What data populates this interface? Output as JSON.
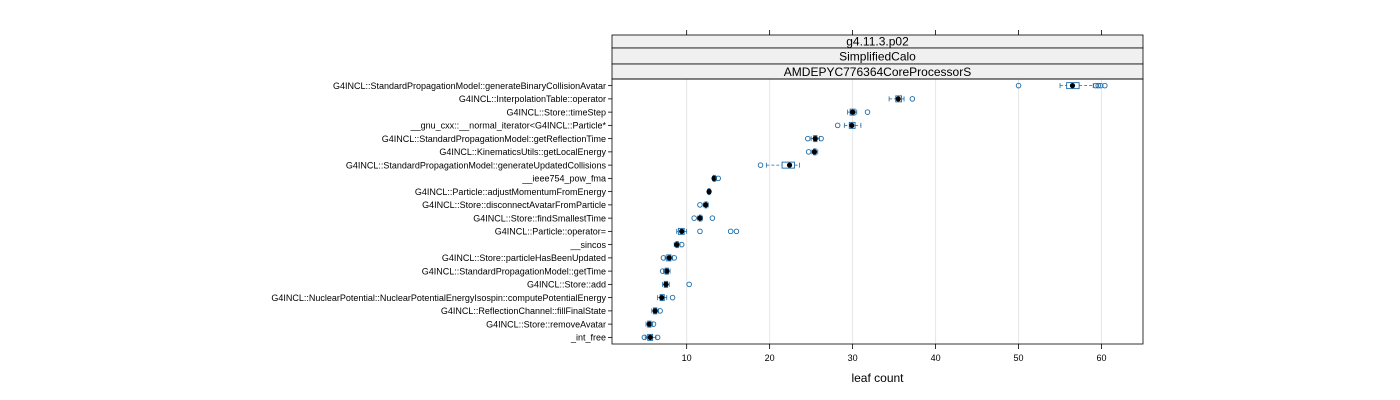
{
  "chart_data": {
    "type": "boxplot",
    "strips": [
      "g4.11.3.p02",
      "SimplifiedCalo",
      "AMDEPYC776364CoreProcessorS"
    ],
    "xlabel": "leaf count",
    "xlim": [
      1,
      65
    ],
    "xticks": [
      10,
      20,
      30,
      40,
      50,
      60
    ],
    "grid": "vertical",
    "colors": {
      "box": "#1a6aa8",
      "median": "#000000",
      "grid": "#e6e6e6",
      "strip": "#f0f0f0"
    },
    "categories": [
      "G4INCL::StandardPropagationModel::generateBinaryCollisionAvatar",
      "G4INCL::InterpolationTable::operator",
      "G4INCL::Store::timeStep",
      "__gnu_cxx::__normal_iterator<G4INCL::Particle*",
      "G4INCL::StandardPropagationModel::getReflectionTime",
      "G4INCL::KinematicsUtils::getLocalEnergy",
      "G4INCL::StandardPropagationModel::generateUpdatedCollisions",
      "__ieee754_pow_fma",
      "G4INCL::Particle::adjustMomentumFromEnergy",
      "G4INCL::Store::disconnectAvatarFromParticle",
      "G4INCL::Store::findSmallestTime",
      "G4INCL::Particle::operator=",
      "__sincos",
      "G4INCL::Store::particleHasBeenUpdated",
      "G4INCL::StandardPropagationModel::getTime",
      "G4INCL::Store::add",
      "G4INCL::NuclearPotential::NuclearPotentialEnergyIsospin::computePotentialEnergy",
      "G4INCL::ReflectionChannel::fillFinalState",
      "G4INCL::Store::removeAvatar",
      "_int_free"
    ],
    "series": [
      {
        "whisker_low": 55.0,
        "q1": 55.8,
        "median": 56.5,
        "q3": 57.3,
        "whisker_high": 59.0,
        "outliers": [
          50.0,
          59.3,
          59.6,
          59.9,
          60.4
        ]
      },
      {
        "whisker_low": 34.4,
        "q1": 35.2,
        "median": 35.5,
        "q3": 35.9,
        "whisker_high": 36.2,
        "outliers": [
          37.2
        ]
      },
      {
        "whisker_low": 29.4,
        "q1": 29.7,
        "median": 30.0,
        "q3": 30.3,
        "whisker_high": 30.5,
        "outliers": [
          31.8
        ]
      },
      {
        "whisker_low": 29.0,
        "q1": 29.6,
        "median": 29.9,
        "q3": 30.3,
        "whisker_high": 31.0,
        "outliers": [
          28.2
        ]
      },
      {
        "whisker_low": 25.0,
        "q1": 25.3,
        "median": 25.5,
        "q3": 25.7,
        "whisker_high": 26.0,
        "outliers": [
          24.6,
          26.2
        ]
      },
      {
        "whisker_low": 25.1,
        "q1": 25.3,
        "median": 25.4,
        "q3": 25.6,
        "whisker_high": 25.8,
        "outliers": [
          24.7
        ]
      },
      {
        "whisker_low": 19.6,
        "q1": 21.5,
        "median": 22.4,
        "q3": 23.0,
        "whisker_high": 23.6,
        "outliers": [
          18.9
        ]
      },
      {
        "whisker_low": 13.1,
        "q1": 13.2,
        "median": 13.3,
        "q3": 13.45,
        "whisker_high": 13.6,
        "outliers": [
          13.8
        ]
      },
      {
        "whisker_low": 12.5,
        "q1": 12.6,
        "median": 12.7,
        "q3": 12.8,
        "whisker_high": 12.9,
        "outliers": []
      },
      {
        "whisker_low": 12.0,
        "q1": 12.2,
        "median": 12.3,
        "q3": 12.45,
        "whisker_high": 12.6,
        "outliers": [
          11.6
        ]
      },
      {
        "whisker_low": 11.3,
        "q1": 11.5,
        "median": 11.6,
        "q3": 11.75,
        "whisker_high": 11.9,
        "outliers": [
          10.9,
          13.1
        ]
      },
      {
        "whisker_low": 8.8,
        "q1": 9.0,
        "median": 9.4,
        "q3": 9.7,
        "whisker_high": 10.0,
        "outliers": [
          11.6,
          15.3,
          16.0
        ]
      },
      {
        "whisker_low": 8.5,
        "q1": 8.7,
        "median": 8.8,
        "q3": 9.0,
        "whisker_high": 9.2,
        "outliers": [
          9.4
        ]
      },
      {
        "whisker_low": 7.4,
        "q1": 7.6,
        "median": 7.9,
        "q3": 8.1,
        "whisker_high": 8.3,
        "outliers": [
          7.2,
          8.5
        ]
      },
      {
        "whisker_low": 7.2,
        "q1": 7.4,
        "median": 7.6,
        "q3": 7.8,
        "whisker_high": 8.0,
        "outliers": [
          7.1
        ]
      },
      {
        "whisker_low": 7.1,
        "q1": 7.3,
        "median": 7.5,
        "q3": 7.7,
        "whisker_high": 7.9,
        "outliers": [
          10.3
        ]
      },
      {
        "whisker_low": 6.5,
        "q1": 6.8,
        "median": 7.0,
        "q3": 7.3,
        "whisker_high": 7.6,
        "outliers": [
          8.3
        ]
      },
      {
        "whisker_low": 5.8,
        "q1": 6.0,
        "median": 6.2,
        "q3": 6.4,
        "whisker_high": 6.6,
        "outliers": [
          6.8
        ]
      },
      {
        "whisker_low": 5.1,
        "q1": 5.3,
        "median": 5.5,
        "q3": 5.7,
        "whisker_high": 5.9,
        "outliers": [
          6.0
        ]
      },
      {
        "whisker_low": 5.0,
        "q1": 5.3,
        "median": 5.6,
        "q3": 5.9,
        "whisker_high": 6.3,
        "outliers": [
          4.9,
          6.5
        ]
      }
    ]
  }
}
